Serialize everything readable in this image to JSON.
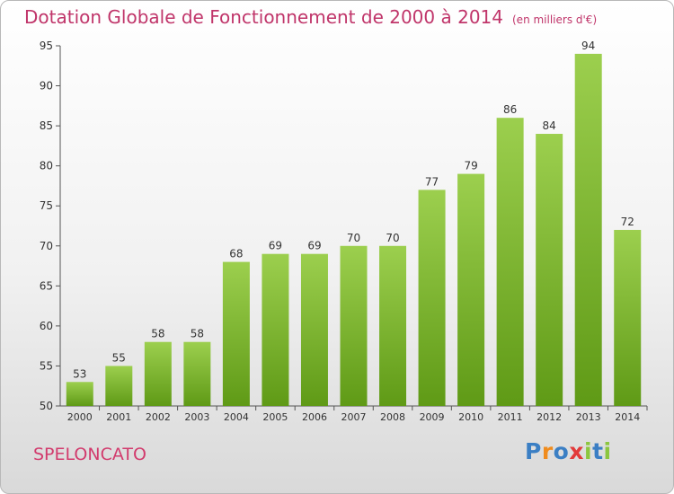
{
  "header": {
    "title": "Dotation Globale de Fonctionnement de 2000 à 2014",
    "unit": "(en milliers d'€)"
  },
  "footer": {
    "commune": "SPELONCATO",
    "logo": {
      "letters": [
        "P",
        "r",
        "o",
        "x",
        "i",
        "t",
        "i"
      ],
      "colors": [
        "#3b7fc4",
        "#f08c1e",
        "#3b7fc4",
        "#e23a3a",
        "#8cc63f",
        "#3b7fc4",
        "#8cc63f"
      ]
    }
  },
  "chart_data": {
    "type": "bar",
    "categories": [
      "2000",
      "2001",
      "2002",
      "2003",
      "2004",
      "2005",
      "2006",
      "2007",
      "2008",
      "2009",
      "2010",
      "2011",
      "2012",
      "2013",
      "2014"
    ],
    "values": [
      53,
      55,
      58,
      58,
      68,
      69,
      69,
      70,
      70,
      77,
      79,
      86,
      84,
      94,
      72
    ],
    "ylim": [
      50,
      95
    ],
    "yticks": [
      50,
      55,
      60,
      65,
      70,
      75,
      80,
      85,
      90,
      95
    ],
    "grid": false,
    "legend": "none",
    "colors": {
      "bar_top": "#9ccf4e",
      "bar_bottom": "#5f9a16",
      "axis": "#555555",
      "text": "#333333"
    }
  }
}
